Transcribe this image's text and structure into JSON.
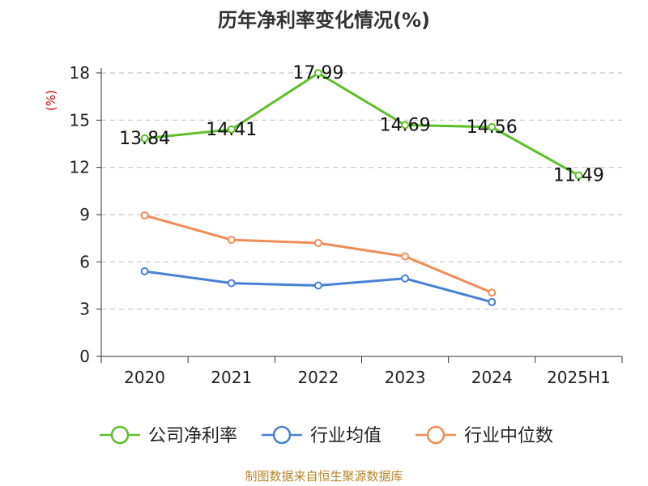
{
  "chart_data": {
    "type": "line",
    "title": "历年净利率变化情况(%)",
    "ylabel": "(%)",
    "xlabel": "",
    "categories": [
      "2020",
      "2021",
      "2022",
      "2023",
      "2024",
      "2025H1"
    ],
    "ylim": [
      0,
      18
    ],
    "yticks": [
      0,
      3,
      6,
      9,
      12,
      15,
      18
    ],
    "grid": true,
    "legend_position": "bottom",
    "series": [
      {
        "name": "公司净利率",
        "color": "#5cbf2a",
        "values": [
          13.84,
          14.41,
          17.99,
          14.69,
          14.56,
          11.49
        ],
        "show_labels": true
      },
      {
        "name": "行业均值",
        "color": "#4a7fd6",
        "values": [
          5.4,
          4.65,
          4.5,
          4.95,
          3.45,
          null
        ],
        "show_labels": false
      },
      {
        "name": "行业中位数",
        "color": "#f28c55",
        "values": [
          8.95,
          7.4,
          7.2,
          6.35,
          4.05,
          null
        ],
        "show_labels": false
      }
    ]
  },
  "source_text": "制图数据来自恒生聚源数据库"
}
